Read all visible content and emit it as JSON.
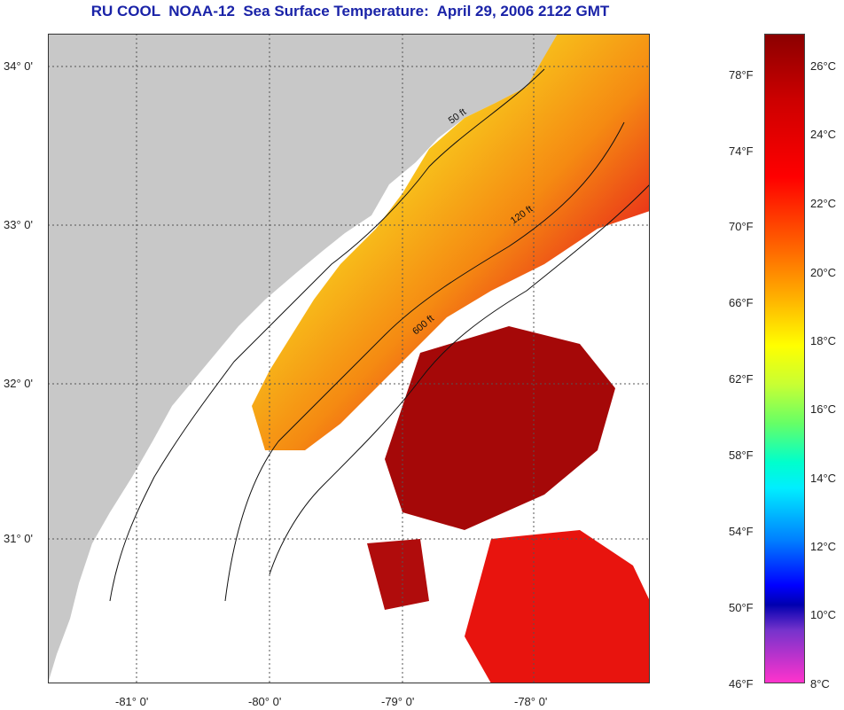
{
  "title": "RU COOL  NOAA-12  Sea Surface Temperature:  April 29, 2006 2122 GMT",
  "map": {
    "lat_labels": [
      "34° 0'",
      "33° 0'",
      "32° 0'",
      "31° 0'"
    ],
    "lon_labels": [
      "-81° 0'",
      "-80° 0'",
      "-79° 0'",
      "-78° 0'"
    ],
    "isobath_labels": [
      "50 ft",
      "120 ft",
      "600 ft"
    ],
    "colors": {
      "land": "#c8c8c8",
      "cloud": "#ffffff"
    }
  },
  "colorbar": {
    "fahrenheit_labels": [
      "78°F",
      "74°F",
      "70°F",
      "66°F",
      "62°F",
      "58°F",
      "54°F",
      "50°F",
      "46°F"
    ],
    "celsius_labels": [
      "26°C",
      "24°C",
      "22°C",
      "20°C",
      "18°C",
      "16°C",
      "14°C",
      "12°C",
      "10°C",
      "8°C"
    ]
  }
}
